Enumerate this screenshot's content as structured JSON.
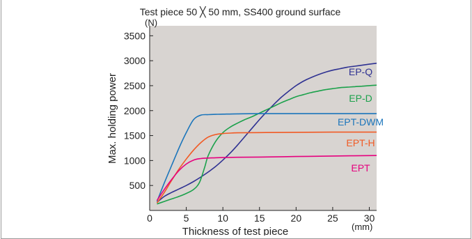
{
  "chart_data": {
    "type": "line",
    "title": "Test piece 50 ╳ 50 mm, SS400 ground surface",
    "xlabel": "Thickness of test piece",
    "ylabel": "Max. holding power",
    "x_unit": "(mm)",
    "y_unit": "(N)",
    "xlim": [
      0,
      31
    ],
    "ylim": [
      0,
      3700
    ],
    "x_ticks": [
      0,
      5,
      10,
      15,
      20,
      25,
      30
    ],
    "y_ticks": [
      500,
      1000,
      1500,
      2000,
      2500,
      3000,
      3500
    ],
    "grid": false,
    "plot_background": "#d8d4d1",
    "legend": "inline labels at right",
    "series": [
      {
        "name": "EP-Q",
        "color": "#2e3192",
        "x": [
          1,
          2,
          3,
          4,
          5,
          6,
          7,
          8,
          9,
          10,
          11,
          12,
          13,
          14,
          15,
          16,
          17,
          18,
          19,
          20,
          21,
          22,
          23,
          24,
          25,
          26,
          27,
          28,
          29,
          30,
          31
        ],
        "y": [
          160,
          280,
          360,
          430,
          500,
          580,
          670,
          770,
          880,
          1010,
          1150,
          1310,
          1480,
          1650,
          1820,
          1980,
          2130,
          2270,
          2390,
          2500,
          2590,
          2660,
          2720,
          2770,
          2810,
          2840,
          2870,
          2890,
          2910,
          2930,
          2950
        ]
      },
      {
        "name": "EP-D",
        "color": "#1ba14b",
        "x": [
          1,
          2,
          3,
          4,
          5,
          6,
          6.8,
          7.5,
          8,
          9,
          10,
          11,
          12,
          13,
          14,
          15,
          16,
          17,
          18,
          19,
          20,
          21,
          22,
          23,
          24,
          25,
          26,
          27,
          28,
          29,
          30,
          31
        ],
        "y": [
          130,
          180,
          230,
          280,
          340,
          420,
          560,
          860,
          1100,
          1380,
          1560,
          1670,
          1750,
          1820,
          1880,
          1950,
          2020,
          2090,
          2160,
          2220,
          2280,
          2320,
          2360,
          2390,
          2420,
          2440,
          2460,
          2470,
          2480,
          2490,
          2500,
          2510
        ]
      },
      {
        "name": "EPT-DWM",
        "color": "#1b75bb",
        "x": [
          1,
          2,
          3,
          4,
          5,
          6,
          7,
          8,
          9,
          10,
          12,
          15,
          18,
          20,
          25,
          31
        ],
        "y": [
          180,
          550,
          900,
          1250,
          1560,
          1820,
          1910,
          1920,
          1925,
          1930,
          1935,
          1940,
          1940,
          1940,
          1940,
          1940
        ]
      },
      {
        "name": "EPT-H",
        "color": "#f15a24",
        "x": [
          1,
          2,
          3,
          4,
          5,
          6,
          7,
          8,
          9,
          10,
          11,
          12,
          15,
          20,
          25,
          31
        ],
        "y": [
          150,
          360,
          600,
          830,
          1030,
          1210,
          1360,
          1470,
          1520,
          1540,
          1550,
          1555,
          1560,
          1565,
          1570,
          1570
        ]
      },
      {
        "name": "EPT",
        "color": "#e6007e",
        "x": [
          1,
          2,
          3,
          4,
          5,
          6,
          7,
          8,
          9,
          10,
          12,
          15,
          20,
          25,
          31
        ],
        "y": [
          200,
          420,
          620,
          800,
          930,
          1010,
          1040,
          1050,
          1055,
          1060,
          1065,
          1070,
          1080,
          1090,
          1100
        ]
      }
    ]
  }
}
